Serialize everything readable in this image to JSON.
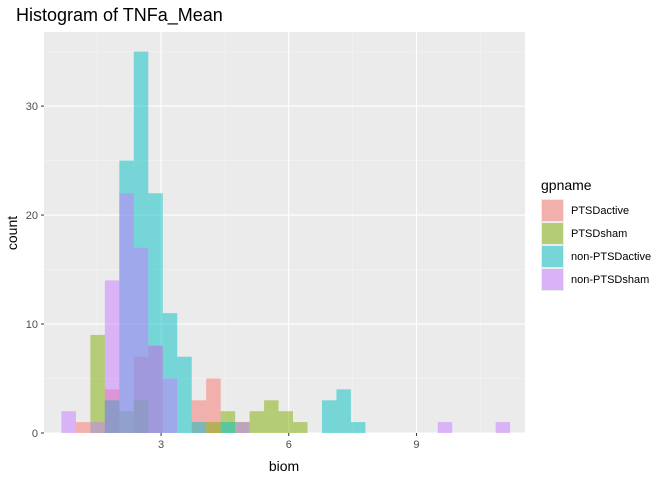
{
  "chart_data": {
    "type": "histogram",
    "title": "Histogram of TNFa_Mean",
    "xlabel": "biom",
    "ylabel": "count",
    "xlim": [
      0.25,
      11.55
    ],
    "ylim": [
      0,
      36.8
    ],
    "x_ticks": [
      3,
      6,
      9
    ],
    "y_ticks": [
      0,
      10,
      20,
      30
    ],
    "bin_width": 0.34,
    "grid": true,
    "legend_title": "gpname",
    "legend_position": "right",
    "series": [
      {
        "name": "PTSDactive",
        "color": "#F8766D",
        "bins": [
          [
            1.0,
            1
          ],
          [
            1.68,
            4
          ],
          [
            2.36,
            7
          ],
          [
            2.7,
            8
          ],
          [
            3.72,
            3
          ],
          [
            4.06,
            5
          ]
        ]
      },
      {
        "name": "PTSDsham",
        "color": "#7CAE00",
        "bins": [
          [
            1.34,
            9
          ],
          [
            1.68,
            3
          ],
          [
            2.02,
            2
          ],
          [
            2.36,
            3
          ],
          [
            4.06,
            1
          ],
          [
            4.4,
            2
          ],
          [
            4.74,
            1
          ],
          [
            5.08,
            2
          ],
          [
            5.42,
            3
          ],
          [
            5.76,
            2
          ],
          [
            6.1,
            1
          ]
        ]
      },
      {
        "name": "non-PTSDactive",
        "color": "#00BFC4",
        "bins": [
          [
            1.68,
            3
          ],
          [
            2.02,
            25
          ],
          [
            2.36,
            35
          ],
          [
            2.7,
            22
          ],
          [
            3.04,
            11
          ],
          [
            3.38,
            7
          ],
          [
            3.72,
            1
          ],
          [
            4.4,
            1
          ],
          [
            6.78,
            3
          ],
          [
            7.12,
            4
          ],
          [
            7.46,
            1
          ]
        ]
      },
      {
        "name": "non-PTSDsham",
        "color": "#C77CFF",
        "bins": [
          [
            0.66,
            2
          ],
          [
            1.34,
            1
          ],
          [
            1.68,
            14
          ],
          [
            2.02,
            22
          ],
          [
            2.36,
            17
          ],
          [
            2.7,
            8
          ],
          [
            3.04,
            5
          ],
          [
            4.74,
            1
          ],
          [
            9.5,
            1
          ],
          [
            10.86,
            1
          ]
        ]
      }
    ]
  }
}
